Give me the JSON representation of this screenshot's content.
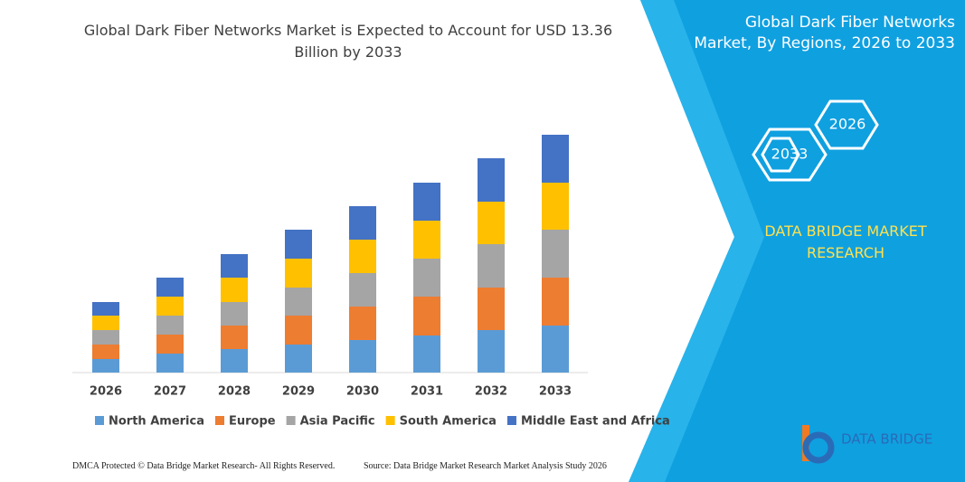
{
  "chart_data": {
    "type": "stacked-bar",
    "title": "Global Dark Fiber Networks Market is Expected to Account for USD 13.36 Billion by 2033",
    "categories": [
      "2026",
      "2027",
      "2028",
      "2029",
      "2030",
      "2031",
      "2032",
      "2033"
    ],
    "series": [
      {
        "name": "North America",
        "color": "#5b9bd5",
        "values": [
          15,
          21,
          26,
          31,
          36,
          41,
          47,
          52
        ]
      },
      {
        "name": "Europe",
        "color": "#ed7d31",
        "values": [
          16,
          21,
          26,
          32,
          37,
          43,
          47,
          53
        ]
      },
      {
        "name": "Asia Pacific",
        "color": "#a5a5a5",
        "values": [
          16,
          21,
          26,
          31,
          37,
          42,
          48,
          53
        ]
      },
      {
        "name": "South America",
        "color": "#ffc000",
        "values": [
          16,
          21,
          27,
          32,
          37,
          42,
          47,
          52
        ]
      },
      {
        "name": "Middle East and Africa",
        "color": "#4472c4",
        "values": [
          15,
          21,
          26,
          32,
          37,
          42,
          48,
          53
        ]
      }
    ]
  },
  "panel": {
    "title": "Global Dark Fiber Networks Market, By Regions, 2026 to 2033",
    "hexagons": [
      "2026",
      "2033"
    ],
    "brand": "DATA BRIDGE MARKET RESEARCH",
    "logo": "DATA BRIDGE"
  },
  "footer": {
    "left": "DMCA Protected © Data Bridge Market Research- All Rights Reserved.",
    "right": "Source: Data Bridge Market Research Market Analysis Study 2026"
  }
}
